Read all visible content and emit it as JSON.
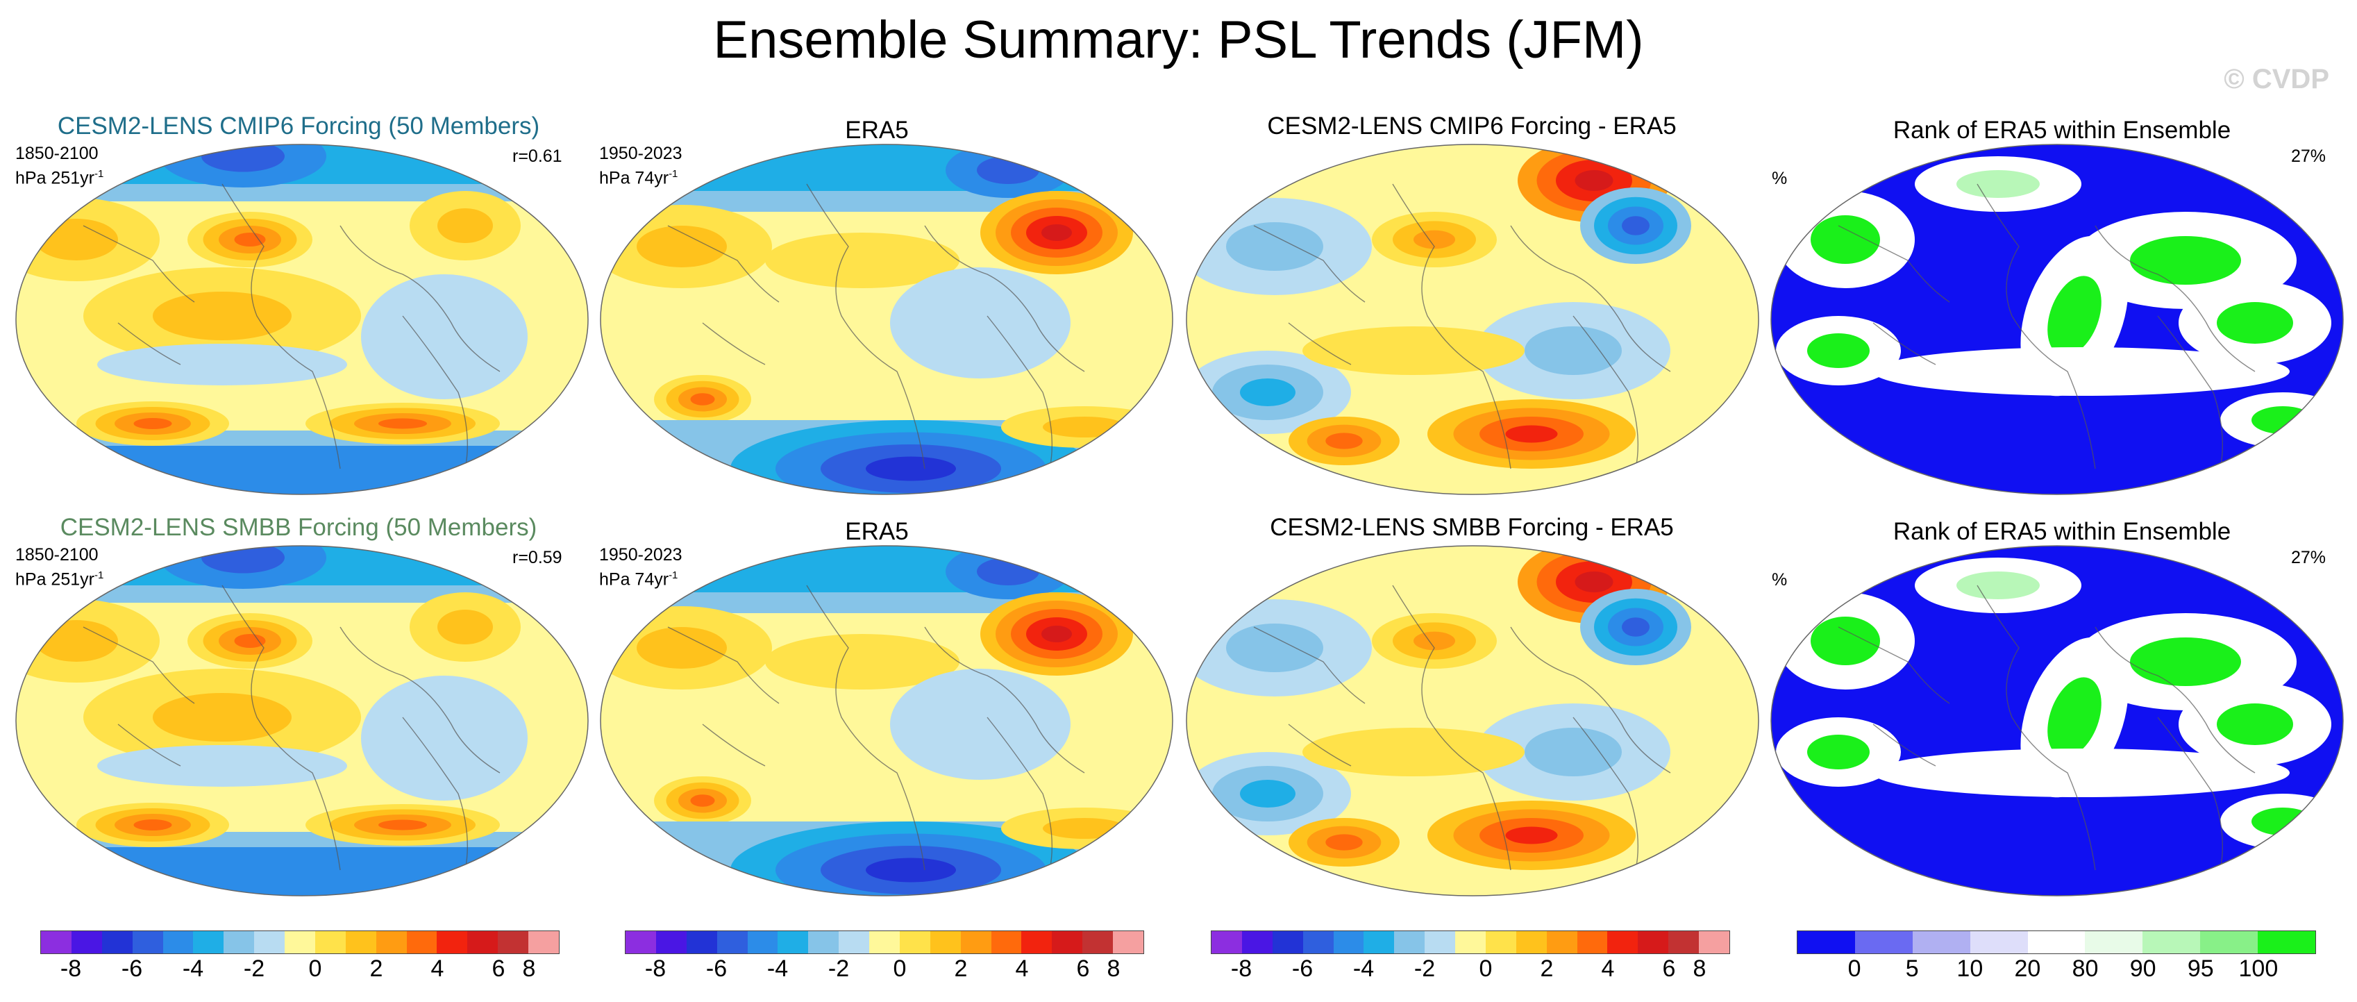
{
  "title": "Ensemble Summary: PSL Trends (JFM)",
  "watermark": "© CVDP",
  "rows": [
    {
      "model": {
        "title": "CESM2-LENS CMIP6 Forcing (50 Members)",
        "period": "1850-2100",
        "units": "hPa 251yr",
        "units_exp": "-1",
        "corr": "r=0.61",
        "title_color": "#1f6e8a"
      },
      "obs": {
        "title": "ERA5",
        "period": "1950-2023",
        "units": "hPa 74yr",
        "units_exp": "-1"
      },
      "diff": {
        "title": "CESM2-LENS CMIP6 Forcing - ERA5"
      },
      "rank": {
        "title": "Rank of ERA5 within Ensemble",
        "pct_label": "%",
        "pct_value": "27%"
      }
    },
    {
      "model": {
        "title": "CESM2-LENS SMBB Forcing (50 Members)",
        "period": "1850-2100",
        "units": "hPa 251yr",
        "units_exp": "-1",
        "corr": "r=0.59",
        "title_color": "#5a8a5f"
      },
      "obs": {
        "title": "ERA5",
        "period": "1950-2023",
        "units": "hPa 74yr",
        "units_exp": "-1"
      },
      "diff": {
        "title": "CESM2-LENS SMBB Forcing - ERA5"
      },
      "rank": {
        "title": "Rank of ERA5 within Ensemble",
        "pct_label": "%",
        "pct_value": "27%"
      }
    }
  ],
  "colorbars": {
    "trend": {
      "colors": [
        "#8c2ee0",
        "#4a16e4",
        "#2233d6",
        "#2f5fde",
        "#2c8ce8",
        "#1faee6",
        "#86c4e8",
        "#b8dcf2",
        "#fff89a",
        "#ffe24a",
        "#ffc21c",
        "#ff9c12",
        "#ff6a0c",
        "#f2230e",
        "#d61a1a",
        "#c23232",
        "#f5a0a0"
      ],
      "ticks": [
        "-8",
        "-6",
        "-4",
        "-2",
        "0",
        "2",
        "4",
        "6",
        "8"
      ]
    },
    "rank": {
      "colors": [
        "#1010f2",
        "#6a6af2",
        "#b0b0f2",
        "#dedefa",
        "#ffffff",
        "#e8fbe8",
        "#b8f7b8",
        "#88f088",
        "#1af01a"
      ],
      "ticks": [
        "0",
        "5",
        "10",
        "20",
        "80",
        "90",
        "95",
        "100"
      ]
    }
  }
}
